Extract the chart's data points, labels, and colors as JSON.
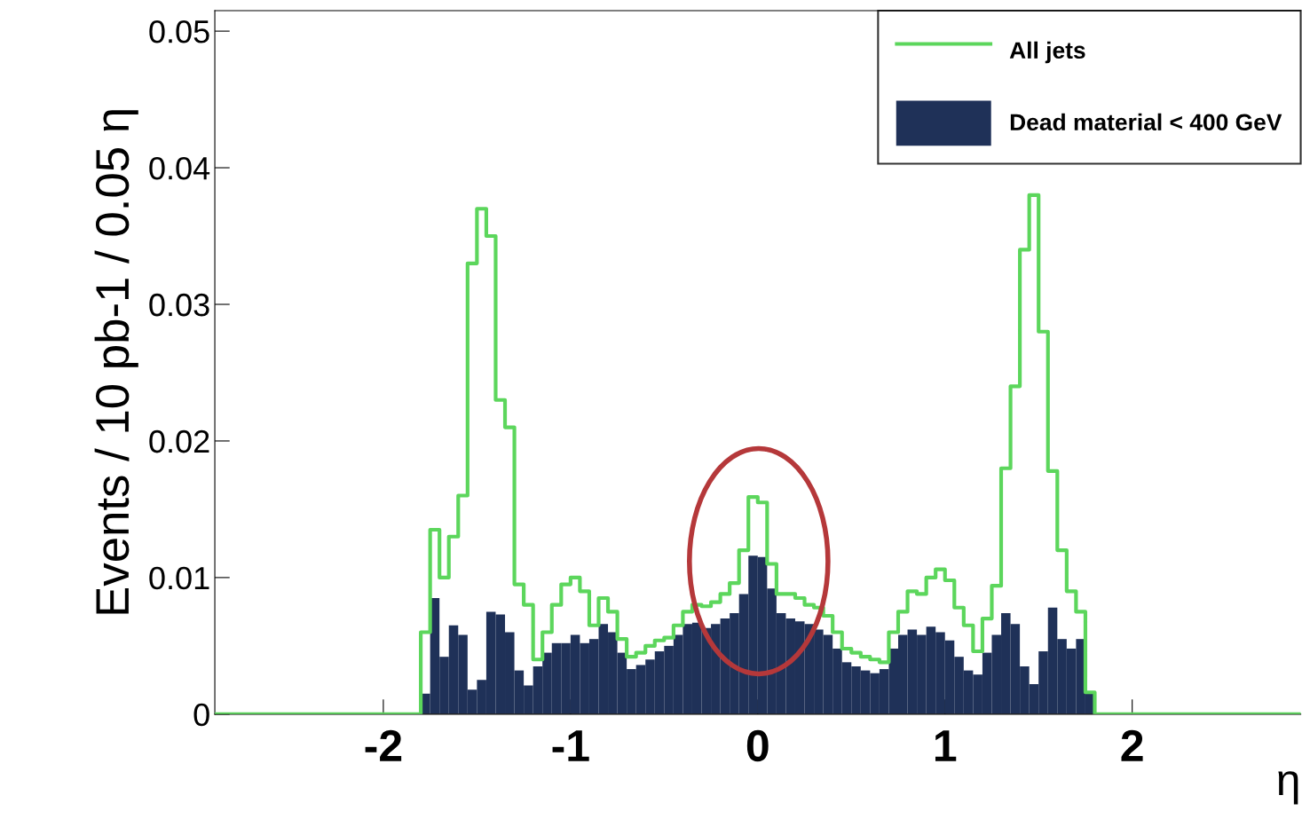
{
  "chart_data": {
    "type": "histogram",
    "xlabel": "η",
    "ylabel": "Events / 10 pb-1 / 0.05 η",
    "bins": [
      -1.8,
      -1.75,
      -1.7,
      -1.65,
      -1.6,
      -1.55,
      -1.5,
      -1.45,
      -1.4,
      -1.35,
      -1.3,
      -1.25,
      -1.2,
      -1.15,
      -1.1,
      -1.05,
      -1.0,
      -0.95,
      -0.9,
      -0.85,
      -0.8,
      -0.75,
      -0.7,
      -0.65,
      -0.6,
      -0.55,
      -0.5,
      -0.45,
      -0.4,
      -0.35,
      -0.3,
      -0.25,
      -0.2,
      -0.15,
      -0.1,
      -0.05,
      0.0,
      0.05,
      0.1,
      0.15,
      0.2,
      0.25,
      0.3,
      0.35,
      0.4,
      0.45,
      0.5,
      0.55,
      0.6,
      0.65,
      0.7,
      0.75,
      0.8,
      0.85,
      0.9,
      0.95,
      1.0,
      1.05,
      1.1,
      1.15,
      1.2,
      1.25,
      1.3,
      1.35,
      1.4,
      1.45,
      1.5,
      1.55,
      1.6,
      1.65,
      1.7,
      1.75,
      1.8
    ],
    "series": [
      {
        "name": "All jets",
        "type": "step",
        "color": "#5cd65c",
        "x": [
          -2.9,
          -1.8,
          -1.75,
          -1.7,
          -1.65,
          -1.6,
          -1.55,
          -1.5,
          -1.45,
          -1.4,
          -1.35,
          -1.3,
          -1.25,
          -1.2,
          -1.15,
          -1.1,
          -1.05,
          -1.0,
          -0.95,
          -0.9,
          -0.85,
          -0.8,
          -0.75,
          -0.7,
          -0.65,
          -0.6,
          -0.55,
          -0.5,
          -0.45,
          -0.4,
          -0.35,
          -0.3,
          -0.25,
          -0.2,
          -0.15,
          -0.1,
          -0.05,
          0.0,
          0.05,
          0.1,
          0.15,
          0.2,
          0.25,
          0.3,
          0.35,
          0.4,
          0.45,
          0.5,
          0.55,
          0.6,
          0.65,
          0.7,
          0.75,
          0.8,
          0.85,
          0.9,
          0.95,
          1.0,
          1.05,
          1.1,
          1.15,
          1.2,
          1.25,
          1.3,
          1.35,
          1.4,
          1.45,
          1.5,
          1.55,
          1.6,
          1.65,
          1.7,
          1.75,
          1.8,
          2.9
        ],
        "values": [
          0,
          0.006,
          0.0135,
          0.01,
          0.013,
          0.016,
          0.033,
          0.037,
          0.035,
          0.023,
          0.021,
          0.0095,
          0.008,
          0.004,
          0.006,
          0.008,
          0.0095,
          0.01,
          0.009,
          0.0065,
          0.0085,
          0.0075,
          0.0055,
          0.0042,
          0.0045,
          0.005,
          0.0054,
          0.0056,
          0.0065,
          0.0075,
          0.008,
          0.0079,
          0.0082,
          0.0088,
          0.0096,
          0.012,
          0.0159,
          0.0155,
          0.011,
          0.0088,
          0.0088,
          0.0085,
          0.008,
          0.0078,
          0.0072,
          0.006,
          0.0048,
          0.0045,
          0.0042,
          0.004,
          0.0038,
          0.006,
          0.0075,
          0.009,
          0.0088,
          0.01,
          0.0106,
          0.0098,
          0.0078,
          0.0065,
          0.0046,
          0.007,
          0.0094,
          0.018,
          0.024,
          0.034,
          0.038,
          0.028,
          0.0178,
          0.012,
          0.009,
          0.0075,
          0.0016,
          0,
          0
        ]
      },
      {
        "name": "Dead material < 400 GeV",
        "color": "#1f3158",
        "values": [
          0.0015,
          0.0085,
          0.0042,
          0.0065,
          0.0058,
          0.0018,
          0.0025,
          0.0075,
          0.0073,
          0.006,
          0.0032,
          0.0021,
          0.0035,
          0.0045,
          0.0052,
          0.0052,
          0.0058,
          0.0052,
          0.0055,
          0.0066,
          0.006,
          0.0045,
          0.0033,
          0.0036,
          0.004,
          0.0046,
          0.005,
          0.0058,
          0.0066,
          0.0067,
          0.0063,
          0.0066,
          0.007,
          0.0074,
          0.0088,
          0.0116,
          0.0115,
          0.0092,
          0.0074,
          0.007,
          0.0068,
          0.0066,
          0.0062,
          0.0058,
          0.0048,
          0.0038,
          0.0035,
          0.0032,
          0.003,
          0.0033,
          0.0048,
          0.0058,
          0.0062,
          0.0058,
          0.0064,
          0.006,
          0.0054,
          0.0042,
          0.0032,
          0.0029,
          0.0045,
          0.0058,
          0.0074,
          0.0066,
          0.0035,
          0.0022,
          0.0046,
          0.0078,
          0.0055,
          0.0048,
          0.0055,
          0.0016
        ]
      }
    ],
    "xlim": [
      -2.9,
      2.9
    ],
    "xticks": [
      -2,
      -1,
      0,
      1,
      2
    ],
    "ylim": [
      0,
      0.0515
    ],
    "yticks": [
      {
        "value": 0,
        "label": "0"
      },
      0.01,
      0.02,
      0.03,
      0.04,
      0.05
    ],
    "legend": "top right",
    "grid": false
  }
}
